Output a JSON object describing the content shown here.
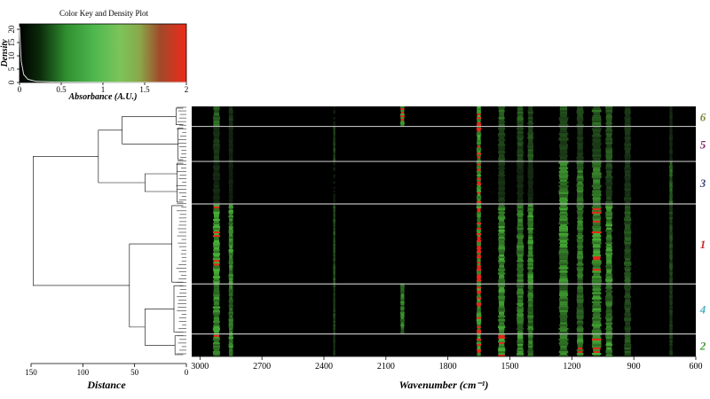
{
  "chart_data": [
    {
      "type": "color_key_density",
      "title": "Color Key and Density  Plot",
      "xlabel": "Absorbance (A.U.)",
      "ylabel": "Density",
      "xlim": [
        0,
        2
      ],
      "ylim": [
        0,
        22
      ],
      "x_ticks": [
        "0",
        "0.5",
        "1",
        "1.5",
        "2"
      ],
      "y_ticks": [
        "0",
        "5",
        "10",
        "15",
        "20"
      ],
      "colorscale": [
        "#000000",
        "#1f6b1f",
        "#3fa83f",
        "#6fc46f",
        "#8ab84e",
        "#a0522d",
        "#ee3322"
      ],
      "density_curve": [
        [
          0.0,
          21
        ],
        [
          0.02,
          8
        ],
        [
          0.05,
          3
        ],
        [
          0.1,
          1.2
        ],
        [
          0.2,
          0.4
        ],
        [
          0.4,
          0.15
        ],
        [
          0.8,
          0.05
        ],
        [
          1.2,
          0.02
        ],
        [
          2.0,
          0.0
        ]
      ]
    },
    {
      "type": "heatmap",
      "xlabel": "Wavenumber (cm⁻¹)",
      "x_ticks": [
        "3000",
        "2700",
        "2400",
        "2100",
        "1800",
        "1500",
        "1200",
        "900",
        "600"
      ],
      "x_range": [
        3040,
        600
      ],
      "clusters": [
        {
          "label": "6",
          "color": "#7a8a3a",
          "rows": [
            0,
            0.08
          ]
        },
        {
          "label": "5",
          "color": "#7a2a6a",
          "rows": [
            0.08,
            0.22
          ]
        },
        {
          "label": "3",
          "color": "#3a4a7a",
          "rows": [
            0.22,
            0.39
          ]
        },
        {
          "label": "1",
          "color": "#cc2a2a",
          "rows": [
            0.39,
            0.71
          ]
        },
        {
          "label": "4",
          "color": "#4ab0c8",
          "rows": [
            0.71,
            0.91
          ]
        },
        {
          "label": "2",
          "color": "#4a9a3a",
          "rows": [
            0.91,
            1.0
          ]
        }
      ],
      "bands": [
        {
          "wn": 2920,
          "w": 30,
          "intensity": [
            0.6,
            0.3,
            0.2,
            0.9,
            0.8,
            0.85
          ]
        },
        {
          "wn": 2850,
          "w": 20,
          "intensity": [
            0.3,
            0.2,
            0.15,
            0.8,
            0.7,
            0.8
          ]
        },
        {
          "wn": 2350,
          "w": 10,
          "intensity": [
            0.1,
            0.4,
            0.1,
            0.5,
            0.4,
            0.3
          ]
        },
        {
          "wn": 2020,
          "w": 18,
          "intensity": [
            1.0,
            0.0,
            0.0,
            0.0,
            0.7,
            0.0
          ]
        },
        {
          "wn": 1650,
          "w": 20,
          "intensity": [
            1.0,
            1.0,
            1.0,
            1.0,
            1.0,
            1.0
          ]
        },
        {
          "wn": 1540,
          "w": 30,
          "intensity": [
            0.6,
            0.4,
            0.3,
            0.9,
            0.8,
            0.9
          ]
        },
        {
          "wn": 1450,
          "w": 30,
          "intensity": [
            0.5,
            0.4,
            0.2,
            0.7,
            0.7,
            0.8
          ]
        },
        {
          "wn": 1400,
          "w": 25,
          "intensity": [
            0.4,
            0.5,
            0.2,
            0.8,
            0.7,
            0.7
          ]
        },
        {
          "wn": 1240,
          "w": 40,
          "intensity": [
            0.5,
            0.4,
            0.8,
            0.8,
            0.7,
            0.8
          ]
        },
        {
          "wn": 1160,
          "w": 30,
          "intensity": [
            0.4,
            0.3,
            0.7,
            0.7,
            0.6,
            0.9
          ]
        },
        {
          "wn": 1080,
          "w": 40,
          "intensity": [
            0.6,
            0.4,
            0.7,
            0.9,
            0.8,
            0.9
          ]
        },
        {
          "wn": 1020,
          "w": 30,
          "intensity": [
            0.5,
            0.5,
            0.4,
            0.8,
            0.7,
            0.8
          ]
        },
        {
          "wn": 930,
          "w": 30,
          "intensity": [
            0.3,
            0.3,
            0.3,
            0.5,
            0.4,
            0.5
          ]
        },
        {
          "wn": 720,
          "w": 15,
          "intensity": [
            0.2,
            0.2,
            0.6,
            0.4,
            0.3,
            0.3
          ]
        }
      ]
    },
    {
      "type": "dendrogram",
      "xlabel": "Distance",
      "x_ticks": [
        "150",
        "100",
        "50",
        "0"
      ],
      "xlim": [
        150,
        0
      ]
    }
  ]
}
